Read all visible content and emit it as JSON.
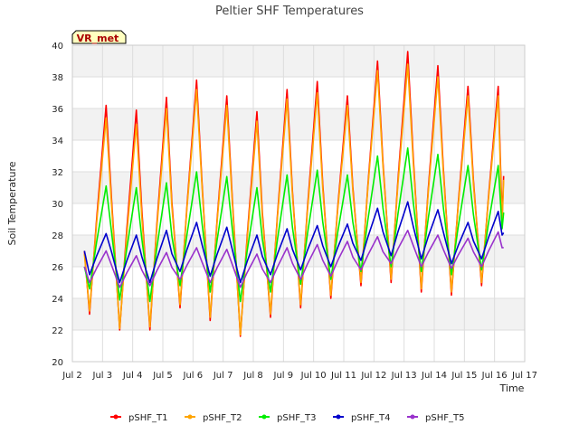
{
  "chart_data": {
    "type": "line",
    "title": "Peltier SHF Temperatures",
    "xlabel": "Time",
    "ylabel": "Soil Temperature",
    "station_tag": "VR_met",
    "x_range": [
      "Jul 2",
      "Jul 17"
    ],
    "x_ticks": [
      "Jul 2",
      "Jul 3",
      "Jul 4",
      "Jul 5",
      "Jul 6",
      "Jul 7",
      "Jul 8",
      "Jul 9",
      "Jul 10",
      "Jul 11",
      "Jul 12",
      "Jul 13",
      "Jul 14",
      "Jul 15",
      "Jul 16",
      "Jul 17"
    ],
    "ylim": [
      20,
      40
    ],
    "y_ticks": [
      20,
      22,
      24,
      26,
      28,
      30,
      32,
      34,
      36,
      38,
      40
    ],
    "grid": true,
    "band_background": true,
    "legend_position": "bottom",
    "daily_peak_day": [
      3.12,
      4.12,
      5.12,
      6.12,
      7.12,
      8.12,
      9.12,
      10.12,
      11.12,
      12.12,
      13.12,
      14.12,
      15.12,
      16.12
    ],
    "series": [
      {
        "name": "pSHF_T1",
        "color": "#ff0000",
        "start": 27.0,
        "end": 29.0,
        "daily_max": [
          36.2,
          35.9,
          36.7,
          37.8,
          36.8,
          35.8,
          37.2,
          37.7,
          36.8,
          39.0,
          39.6,
          38.7,
          37.4,
          37.4
        ],
        "daily_min": [
          23.0,
          22.0,
          22.0,
          23.4,
          22.6,
          21.6,
          22.8,
          23.4,
          24.0,
          24.8,
          25.0,
          24.4,
          24.2,
          24.8
        ]
      },
      {
        "name": "pSHF_T2",
        "color": "#ffa500",
        "start": 26.8,
        "end": 28.6,
        "daily_max": [
          35.4,
          35.0,
          36.0,
          37.2,
          36.2,
          35.2,
          36.6,
          37.0,
          36.2,
          38.4,
          38.8,
          38.0,
          36.8,
          36.8
        ],
        "daily_min": [
          23.2,
          22.1,
          22.2,
          23.6,
          22.8,
          21.7,
          23.0,
          23.6,
          24.2,
          25.0,
          25.2,
          24.6,
          24.4,
          25.0
        ]
      },
      {
        "name": "pSHF_T3",
        "color": "#00ee00",
        "start": 26.0,
        "end": 28.4,
        "daily_max": [
          31.1,
          31.0,
          31.3,
          32.0,
          31.7,
          31.0,
          31.8,
          32.1,
          31.8,
          33.0,
          33.5,
          33.1,
          32.4,
          32.4
        ],
        "daily_min": [
          24.6,
          23.9,
          23.8,
          24.8,
          24.4,
          23.8,
          24.4,
          24.9,
          25.2,
          25.7,
          26.0,
          25.7,
          25.5,
          25.8
        ]
      },
      {
        "name": "pSHF_T4",
        "color": "#0000cc",
        "start": 27.0,
        "end": 28.0,
        "daily_max": [
          28.1,
          28.0,
          28.3,
          28.8,
          28.5,
          28.0,
          28.4,
          28.6,
          28.7,
          29.7,
          30.1,
          29.6,
          28.8,
          29.5
        ],
        "daily_min": [
          25.5,
          25.0,
          25.0,
          25.7,
          25.4,
          25.0,
          25.5,
          25.8,
          26.0,
          26.4,
          26.7,
          26.5,
          26.2,
          26.5
        ]
      },
      {
        "name": "pSHF_T5",
        "color": "#9932cc",
        "start": 26.0,
        "end": 27.2,
        "daily_max": [
          27.0,
          26.7,
          26.9,
          27.2,
          27.1,
          26.8,
          27.2,
          27.4,
          27.6,
          27.9,
          28.3,
          28.0,
          27.8,
          28.2
        ],
        "daily_min": [
          25.0,
          24.7,
          24.8,
          25.2,
          25.0,
          24.7,
          25.0,
          25.2,
          25.4,
          25.8,
          26.2,
          26.0,
          25.9,
          26.0
        ]
      }
    ]
  }
}
